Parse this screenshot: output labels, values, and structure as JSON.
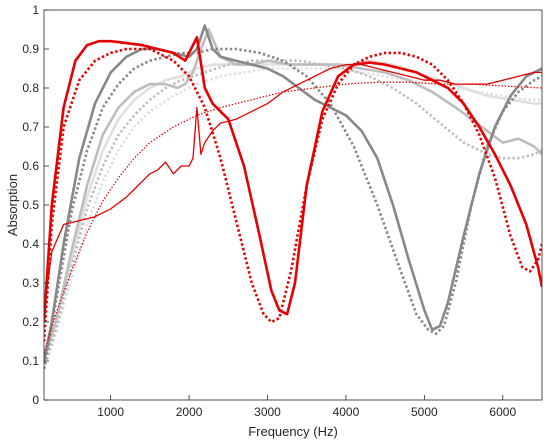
{
  "chart_data": {
    "type": "line",
    "title": "",
    "xlabel": "Frequency (Hz)",
    "ylabel": "Absorption",
    "xlim": [
      150,
      6500
    ],
    "ylim": [
      0,
      1
    ],
    "xticks": [
      1000,
      2000,
      3000,
      4000,
      5000,
      6000
    ],
    "yticks": [
      0,
      0.1,
      0.2,
      0.3,
      0.4,
      0.5,
      0.6,
      0.7,
      0.8,
      0.9,
      1
    ],
    "xtick_labels": [
      "1000",
      "2000",
      "3000",
      "4000",
      "5000",
      "6000"
    ],
    "ytick_labels": [
      "0",
      "0.1",
      "0.2",
      "0.3",
      "0.4",
      "0.5",
      "0.6",
      "0.7",
      "0.8",
      "0.9",
      "1"
    ],
    "grid": false,
    "legend": "none",
    "series": [
      {
        "color": "#e60000",
        "style": "solid",
        "width": "thick",
        "x": [
          150,
          250,
          400,
          550,
          700,
          850,
          1000,
          1200,
          1400,
          1600,
          1800,
          1950,
          2100,
          2200,
          2300,
          2500,
          2700,
          2900,
          3050,
          3150,
          3250,
          3350,
          3500,
          3700,
          3900,
          4100,
          4300,
          4500,
          4700,
          4900,
          5100,
          5300,
          5500,
          5700,
          5900,
          6100,
          6300,
          6450,
          6500
        ],
        "y": [
          0.2,
          0.5,
          0.75,
          0.87,
          0.91,
          0.92,
          0.92,
          0.915,
          0.91,
          0.9,
          0.89,
          0.87,
          0.93,
          0.8,
          0.76,
          0.72,
          0.6,
          0.42,
          0.28,
          0.23,
          0.22,
          0.3,
          0.55,
          0.74,
          0.83,
          0.86,
          0.865,
          0.86,
          0.85,
          0.84,
          0.82,
          0.8,
          0.76,
          0.7,
          0.63,
          0.55,
          0.45,
          0.34,
          0.29
        ]
      },
      {
        "color": "#e60000",
        "style": "dotted",
        "width": "thick",
        "x": [
          150,
          250,
          400,
          600,
          800,
          1000,
          1200,
          1500,
          1800,
          2000,
          2200,
          2400,
          2600,
          2800,
          2950,
          3050,
          3150,
          3300,
          3500,
          3700,
          3900,
          4100,
          4300,
          4500,
          4700,
          4900,
          5100,
          5300,
          5500,
          5700,
          5900,
          6100,
          6250,
          6350,
          6450,
          6500
        ],
        "y": [
          0.15,
          0.45,
          0.7,
          0.82,
          0.87,
          0.89,
          0.9,
          0.9,
          0.87,
          0.83,
          0.75,
          0.62,
          0.46,
          0.3,
          0.22,
          0.2,
          0.21,
          0.33,
          0.55,
          0.72,
          0.81,
          0.86,
          0.88,
          0.89,
          0.89,
          0.88,
          0.86,
          0.82,
          0.76,
          0.68,
          0.57,
          0.42,
          0.34,
          0.33,
          0.36,
          0.4
        ]
      },
      {
        "color": "#e60000",
        "style": "solid",
        "width": "thin",
        "x": [
          150,
          250,
          400,
          600,
          800,
          1000,
          1200,
          1300,
          1400,
          1500,
          1600,
          1700,
          1800,
          1900,
          2000,
          2050,
          2100,
          2150,
          2200,
          2300,
          2400,
          2600,
          2800,
          3000,
          3200,
          3400,
          3600,
          3800,
          4000,
          4200,
          4400,
          4600,
          4800,
          5000,
          5200,
          5400,
          5600,
          5800,
          6000,
          6200,
          6400,
          6500
        ],
        "y": [
          0.23,
          0.38,
          0.45,
          0.46,
          0.47,
          0.49,
          0.52,
          0.54,
          0.56,
          0.58,
          0.59,
          0.61,
          0.58,
          0.6,
          0.6,
          0.62,
          0.75,
          0.63,
          0.66,
          0.69,
          0.71,
          0.72,
          0.74,
          0.76,
          0.79,
          0.81,
          0.83,
          0.85,
          0.86,
          0.86,
          0.85,
          0.84,
          0.83,
          0.82,
          0.82,
          0.81,
          0.81,
          0.81,
          0.82,
          0.83,
          0.84,
          0.84
        ]
      },
      {
        "color": "#e60000",
        "style": "dotted",
        "width": "thin",
        "x": [
          150,
          300,
          500,
          700,
          900,
          1100,
          1300,
          1500,
          1800,
          2100,
          2400,
          2800,
          3200,
          3600,
          4000,
          4400,
          4800,
          5200,
          5600,
          6000,
          6500
        ],
        "y": [
          0.12,
          0.22,
          0.33,
          0.43,
          0.51,
          0.57,
          0.62,
          0.66,
          0.7,
          0.73,
          0.75,
          0.77,
          0.79,
          0.8,
          0.81,
          0.815,
          0.815,
          0.81,
          0.81,
          0.805,
          0.8
        ]
      },
      {
        "color": "#888888",
        "style": "solid",
        "width": "thick",
        "x": [
          150,
          250,
          400,
          600,
          800,
          1000,
          1200,
          1400,
          1600,
          1800,
          2000,
          2100,
          2200,
          2300,
          2400,
          2600,
          2800,
          3000,
          3200,
          3400,
          3600,
          3800,
          4000,
          4200,
          4400,
          4600,
          4800,
          5000,
          5100,
          5200,
          5300,
          5500,
          5700,
          5900,
          6100,
          6300,
          6500
        ],
        "y": [
          0.1,
          0.2,
          0.4,
          0.62,
          0.76,
          0.84,
          0.88,
          0.9,
          0.9,
          0.89,
          0.88,
          0.9,
          0.96,
          0.9,
          0.88,
          0.87,
          0.86,
          0.85,
          0.83,
          0.8,
          0.77,
          0.75,
          0.73,
          0.69,
          0.62,
          0.5,
          0.36,
          0.23,
          0.18,
          0.19,
          0.25,
          0.42,
          0.58,
          0.7,
          0.78,
          0.83,
          0.85
        ]
      },
      {
        "color": "#888888",
        "style": "dotted",
        "width": "thick",
        "x": [
          150,
          300,
          500,
          700,
          900,
          1100,
          1300,
          1500,
          1700,
          1900,
          2100,
          2300,
          2600,
          2900,
          3200,
          3500,
          3800,
          4100,
          4400,
          4700,
          4900,
          5050,
          5150,
          5250,
          5400,
          5600,
          5800,
          6000,
          6200,
          6400,
          6500
        ],
        "y": [
          0.08,
          0.25,
          0.48,
          0.64,
          0.75,
          0.81,
          0.85,
          0.87,
          0.88,
          0.89,
          0.89,
          0.9,
          0.9,
          0.89,
          0.87,
          0.83,
          0.76,
          0.65,
          0.5,
          0.33,
          0.22,
          0.18,
          0.17,
          0.19,
          0.3,
          0.5,
          0.65,
          0.74,
          0.79,
          0.82,
          0.83
        ]
      },
      {
        "color": "#bdbdbd",
        "style": "solid",
        "width": "thick",
        "x": [
          150,
          300,
          500,
          700,
          900,
          1100,
          1300,
          1500,
          1700,
          1850,
          1950,
          2050,
          2150,
          2250,
          2400,
          2600,
          2800,
          3000,
          3300,
          3600,
          3900,
          4200,
          4500,
          4800,
          5100,
          5400,
          5600,
          5800,
          6000,
          6200,
          6400,
          6500
        ],
        "y": [
          0.1,
          0.2,
          0.38,
          0.55,
          0.68,
          0.75,
          0.79,
          0.81,
          0.81,
          0.8,
          0.81,
          0.84,
          0.9,
          0.95,
          0.88,
          0.86,
          0.86,
          0.87,
          0.86,
          0.86,
          0.86,
          0.85,
          0.84,
          0.82,
          0.79,
          0.75,
          0.72,
          0.69,
          0.66,
          0.67,
          0.65,
          0.63
        ]
      },
      {
        "color": "#bdbdbd",
        "style": "dotted",
        "width": "thick",
        "x": [
          150,
          300,
          500,
          700,
          900,
          1100,
          1300,
          1500,
          1700,
          1900,
          2200,
          2500,
          2800,
          3100,
          3400,
          3700,
          4000,
          4300,
          4600,
          4900,
          5200,
          5500,
          5800,
          6000,
          6200,
          6400,
          6500
        ],
        "y": [
          0.08,
          0.18,
          0.34,
          0.49,
          0.6,
          0.68,
          0.73,
          0.77,
          0.8,
          0.82,
          0.84,
          0.86,
          0.87,
          0.87,
          0.87,
          0.86,
          0.85,
          0.83,
          0.8,
          0.76,
          0.71,
          0.66,
          0.63,
          0.62,
          0.62,
          0.63,
          0.64
        ]
      },
      {
        "color": "#e0e0e0",
        "style": "solid",
        "width": "thick",
        "x": [
          150,
          300,
          500,
          700,
          900,
          1100,
          1300,
          1500,
          1700,
          1900,
          2100,
          2300,
          2500,
          2800,
          3100,
          3400,
          3700,
          4000,
          4300,
          4600,
          4900,
          5200,
          5500,
          5800,
          6100,
          6400,
          6500
        ],
        "y": [
          0.1,
          0.2,
          0.36,
          0.52,
          0.64,
          0.72,
          0.77,
          0.8,
          0.82,
          0.83,
          0.85,
          0.86,
          0.86,
          0.86,
          0.86,
          0.86,
          0.86,
          0.86,
          0.87,
          0.86,
          0.84,
          0.82,
          0.8,
          0.78,
          0.77,
          0.76,
          0.76
        ]
      },
      {
        "color": "#e0e0e0",
        "style": "dotted",
        "width": "thick",
        "x": [
          150,
          300,
          500,
          700,
          900,
          1100,
          1300,
          1500,
          1800,
          2100,
          2400,
          2700,
          3000,
          3300,
          3600,
          3900,
          4200,
          4500,
          4800,
          5100,
          5400,
          5700,
          6000,
          6300,
          6500
        ],
        "y": [
          0.08,
          0.17,
          0.31,
          0.45,
          0.56,
          0.64,
          0.7,
          0.74,
          0.78,
          0.81,
          0.83,
          0.84,
          0.85,
          0.85,
          0.85,
          0.85,
          0.84,
          0.83,
          0.82,
          0.81,
          0.8,
          0.79,
          0.78,
          0.77,
          0.77
        ]
      }
    ]
  }
}
